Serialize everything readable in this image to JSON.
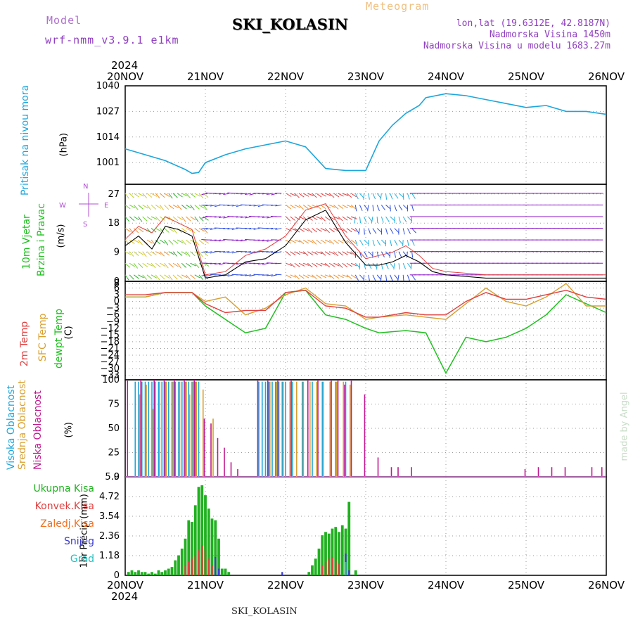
{
  "header": {
    "model_label": "Model",
    "model_value": "wrf-nmm_v3.9.1 e1km",
    "title": "SKI_KOLASIN",
    "meteogram": "Meteogram",
    "info_line1": "lon,lat (19.6312E, 42.8187N)",
    "info_line2": "Nadmorska Visina 1450m",
    "info_line3": "Nadmorska Visina u modelu 1683.27m",
    "year_top": "2024",
    "year_bottom": "2024",
    "footer_title": "SKI_KOLASIN",
    "credit": "made by Angel"
  },
  "colors": {
    "pressure": "#1ca6dc",
    "temp2m": "#e04040",
    "sfc": "#d8a030",
    "dewpt": "#20c020",
    "grid": "#999999",
    "wind_west": "#8a14c8",
    "high_cloud": "#1ca6dc",
    "mid_cloud": "#d8a030",
    "low_cloud": "#c01890",
    "total_precip": "#20b020",
    "conv_precip": "#e04040",
    "frozen_precip": "#f07020",
    "snow": "#3c3cd0",
    "hail": "#20c0c0"
  },
  "labels": {
    "pressure_title": "Pritisak na nivou mora",
    "pressure_unit": "(hPa)",
    "wind_title1": "10m Vjetar",
    "wind_title2": "Brzina i Pravac",
    "wind_unit": "(m/s)",
    "compass_w": "W",
    "compass_e": "E",
    "compass_n": "N",
    "compass_s": "S",
    "temp_2m": "2m Temp",
    "temp_sfc": "SFC Temp",
    "temp_dew": "dewpt Temp",
    "temp_unit": "(C)",
    "cloud_high": "Visoka Oblacnost",
    "cloud_mid": "Srednja Oblacnost",
    "cloud_low": "Niska Oblacnost",
    "cloud_unit": "(%)",
    "precip_axis": "1hr Precip (mm)",
    "legend_total": "Ukupna Kisa",
    "legend_conv": "Konvek.Kisa",
    "legend_frozen": "Zaledj.Kisa",
    "legend_snow": "Snijeg",
    "legend_hail": "Grad"
  },
  "chart_data": {
    "type": "line",
    "days": [
      "20NOV",
      "21NOV",
      "22NOV",
      "23NOV",
      "24NOV",
      "25NOV",
      "26NOV"
    ],
    "pressure": {
      "ylim": [
        990,
        1040
      ],
      "ticks": [
        1001,
        1014,
        1027,
        1040
      ],
      "x_hours": [
        0,
        6,
        12,
        18,
        20,
        22,
        24,
        30,
        36,
        42,
        48,
        54,
        60,
        66,
        72,
        76,
        80,
        84,
        88,
        90,
        96,
        102,
        108,
        114,
        120,
        126,
        132,
        138,
        144
      ],
      "values": [
        1008,
        1005,
        1002,
        997.5,
        995.5,
        996,
        1001,
        1005,
        1008,
        1010,
        1012,
        1009,
        998,
        997,
        997,
        1012,
        1020,
        1026,
        1030,
        1034,
        1036,
        1035,
        1033,
        1031,
        1029,
        1030,
        1027,
        1027,
        1025.5
      ]
    },
    "wind": {
      "ylim": [
        0,
        30
      ],
      "ticks": [
        0,
        9,
        18,
        27
      ],
      "x_hours": [
        0,
        4,
        8,
        12,
        16,
        20,
        24,
        30,
        36,
        42,
        48,
        54,
        60,
        66,
        72,
        76,
        80,
        84,
        88,
        92,
        96,
        108,
        120,
        132,
        144
      ],
      "speed": [
        11,
        14,
        10,
        17,
        16,
        14,
        1,
        2,
        6,
        7,
        11,
        19,
        22,
        12,
        5,
        5,
        6,
        8,
        6,
        3,
        2,
        1,
        1,
        1,
        1
      ],
      "gust": [
        13,
        17,
        15,
        20,
        18,
        16,
        2,
        3,
        8,
        10,
        14,
        22,
        24,
        14,
        7,
        8,
        9,
        11,
        8,
        4,
        3,
        2,
        2,
        2,
        2
      ]
    },
    "temperature": {
      "ylim": [
        -35,
        9
      ],
      "ticks": [
        -33,
        -30,
        -27,
        -24,
        -21,
        -18,
        -15,
        -12,
        -9,
        -6,
        -3,
        0,
        3,
        6,
        8
      ],
      "x_hours": [
        0,
        6,
        12,
        20,
        24,
        30,
        36,
        42,
        48,
        54,
        60,
        66,
        72,
        76,
        84,
        90,
        96,
        102,
        108,
        114,
        120,
        126,
        132,
        138,
        144
      ],
      "t2m": [
        3,
        3,
        4,
        4,
        -1,
        -5,
        -4,
        -4,
        4,
        5,
        -2,
        -3,
        -7,
        -7,
        -5,
        -6,
        -6,
        0,
        4,
        1,
        1,
        3,
        5,
        2,
        1
      ],
      "sfc": [
        2,
        2,
        4,
        4,
        0,
        2,
        -6,
        -3,
        3,
        6,
        -1,
        -2,
        -8,
        -7,
        -6,
        -7,
        -8,
        -1,
        6,
        0,
        -2,
        2,
        8,
        -2,
        -2
      ],
      "dew": [
        2,
        2,
        4,
        4,
        -2,
        -8,
        -14,
        -12,
        4,
        5,
        -6,
        -8,
        -12,
        -14,
        -13,
        -14,
        -32,
        -16,
        -18,
        -16,
        -12,
        -6,
        3,
        -1,
        -5
      ]
    },
    "clouds": {
      "ylim": [
        0,
        100
      ],
      "ticks": [
        0,
        25,
        50,
        75,
        100
      ],
      "high": [
        [
          3,
          98
        ],
        [
          4,
          98
        ],
        [
          5,
          98
        ],
        [
          6,
          98
        ],
        [
          7,
          98
        ],
        [
          8,
          98
        ],
        [
          9,
          98
        ],
        [
          10,
          98
        ],
        [
          11,
          98
        ],
        [
          12,
          98
        ],
        [
          13,
          98
        ],
        [
          14,
          98
        ],
        [
          15,
          98
        ],
        [
          16,
          98
        ],
        [
          17,
          98
        ],
        [
          18,
          98
        ],
        [
          19,
          98
        ],
        [
          20,
          98
        ],
        [
          21,
          98
        ],
        [
          22,
          98
        ],
        [
          40,
          98
        ],
        [
          41,
          98
        ],
        [
          42,
          98
        ],
        [
          43,
          98
        ],
        [
          44,
          98
        ],
        [
          45,
          98
        ],
        [
          46,
          98
        ],
        [
          47,
          98
        ],
        [
          48,
          98
        ],
        [
          50,
          98
        ],
        [
          53,
          98
        ],
        [
          56,
          98
        ],
        [
          59,
          98
        ],
        [
          63,
          98
        ],
        [
          66,
          98
        ]
      ],
      "mid": [
        [
          4,
          85
        ],
        [
          6,
          95
        ],
        [
          8,
          70
        ],
        [
          10,
          98
        ],
        [
          12,
          98
        ],
        [
          14,
          98
        ],
        [
          16,
          98
        ],
        [
          18,
          98
        ],
        [
          19,
          85
        ],
        [
          20,
          98
        ],
        [
          21,
          98
        ],
        [
          23,
          90
        ],
        [
          26,
          60
        ],
        [
          43,
          98
        ],
        [
          45,
          98
        ],
        [
          47,
          98
        ],
        [
          49,
          98
        ],
        [
          51,
          98
        ],
        [
          53,
          98
        ],
        [
          55,
          98
        ],
        [
          57,
          98
        ],
        [
          59,
          98
        ],
        [
          61,
          98
        ],
        [
          63,
          98
        ],
        [
          65,
          98
        ],
        [
          67,
          95
        ]
      ],
      "low": [
        [
          1,
          100
        ],
        [
          5,
          100
        ],
        [
          9,
          100
        ],
        [
          12,
          100
        ],
        [
          15,
          100
        ],
        [
          18,
          100
        ],
        [
          21,
          100
        ],
        [
          24,
          60
        ],
        [
          26,
          55
        ],
        [
          28,
          40
        ],
        [
          30,
          30
        ],
        [
          32,
          15
        ],
        [
          34,
          8
        ],
        [
          40,
          100
        ],
        [
          43,
          100
        ],
        [
          46,
          100
        ],
        [
          50,
          100
        ],
        [
          55,
          100
        ],
        [
          58,
          100
        ],
        [
          62,
          100
        ],
        [
          64,
          100
        ],
        [
          66,
          95
        ],
        [
          68,
          100
        ],
        [
          72,
          85
        ],
        [
          76,
          20
        ],
        [
          80,
          10
        ],
        [
          82,
          10
        ],
        [
          86,
          10
        ],
        [
          120,
          8
        ],
        [
          124,
          10
        ],
        [
          128,
          10
        ],
        [
          132,
          10
        ],
        [
          140,
          10
        ],
        [
          143,
          10
        ]
      ]
    },
    "precip": {
      "ylim": [
        0,
        5.9
      ],
      "ticks": [
        0,
        1.18,
        2.36,
        3.54,
        4.72,
        5.9
      ],
      "total": [
        [
          1,
          0.2
        ],
        [
          2,
          0.3
        ],
        [
          3,
          0.2
        ],
        [
          4,
          0.3
        ],
        [
          5,
          0.2
        ],
        [
          6,
          0.2
        ],
        [
          7,
          0.1
        ],
        [
          8,
          0.2
        ],
        [
          9,
          0.1
        ],
        [
          10,
          0.3
        ],
        [
          11,
          0.2
        ],
        [
          12,
          0.3
        ],
        [
          13,
          0.4
        ],
        [
          14,
          0.5
        ],
        [
          15,
          0.9
        ],
        [
          16,
          1.2
        ],
        [
          17,
          1.6
        ],
        [
          18,
          2.2
        ],
        [
          19,
          3.3
        ],
        [
          20,
          3.2
        ],
        [
          21,
          4.2
        ],
        [
          22,
          5.3
        ],
        [
          23,
          5.4
        ],
        [
          24,
          4.8
        ],
        [
          25,
          4.0
        ],
        [
          26,
          3.4
        ],
        [
          27,
          3.3
        ],
        [
          28,
          2.2
        ],
        [
          29,
          0.4
        ],
        [
          30,
          0.4
        ],
        [
          31,
          0.2
        ],
        [
          55,
          0.2
        ],
        [
          56,
          0.6
        ],
        [
          57,
          1.0
        ],
        [
          58,
          1.6
        ],
        [
          59,
          2.4
        ],
        [
          60,
          2.6
        ],
        [
          61,
          2.5
        ],
        [
          62,
          2.8
        ],
        [
          63,
          2.9
        ],
        [
          64,
          2.6
        ],
        [
          65,
          3.0
        ],
        [
          66,
          2.8
        ],
        [
          67,
          4.4
        ],
        [
          69,
          0.3
        ]
      ],
      "conv": [
        [
          18,
          0.6
        ],
        [
          19,
          0.8
        ],
        [
          20,
          1.0
        ],
        [
          21,
          1.2
        ],
        [
          22,
          1.5
        ],
        [
          23,
          1.8
        ],
        [
          24,
          1.5
        ],
        [
          25,
          1.0
        ],
        [
          26,
          0.6
        ],
        [
          59,
          0.6
        ],
        [
          60,
          0.8
        ],
        [
          61,
          1.0
        ],
        [
          62,
          1.1
        ],
        [
          63,
          0.9
        ],
        [
          64,
          0.7
        ]
      ],
      "frozen": [],
      "snow": [
        [
          27,
          1.1
        ],
        [
          28,
          0.4
        ],
        [
          47,
          0.2
        ],
        [
          66,
          1.3
        ],
        [
          67,
          0.3
        ]
      ],
      "hail": [
        [
          66,
          0.8
        ]
      ]
    }
  }
}
